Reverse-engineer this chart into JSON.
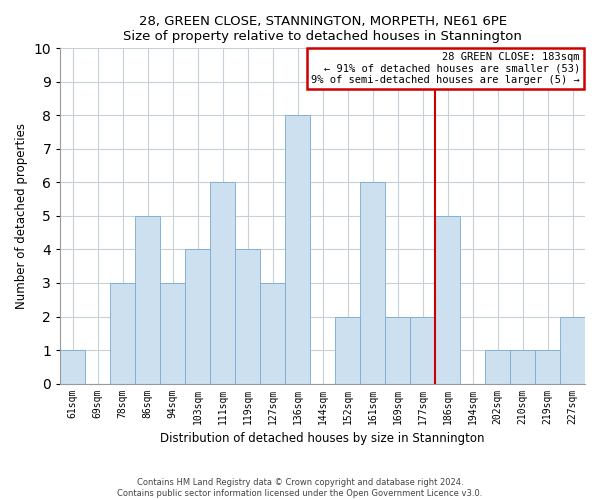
{
  "title": "28, GREEN CLOSE, STANNINGTON, MORPETH, NE61 6PE",
  "subtitle": "Size of property relative to detached houses in Stannington",
  "xlabel": "Distribution of detached houses by size in Stannington",
  "ylabel": "Number of detached properties",
  "bar_labels": [
    "61sqm",
    "69sqm",
    "78sqm",
    "86sqm",
    "94sqm",
    "103sqm",
    "111sqm",
    "119sqm",
    "127sqm",
    "136sqm",
    "144sqm",
    "152sqm",
    "161sqm",
    "169sqm",
    "177sqm",
    "186sqm",
    "194sqm",
    "202sqm",
    "210sqm",
    "219sqm",
    "227sqm"
  ],
  "bar_values": [
    1,
    0,
    3,
    5,
    3,
    4,
    6,
    4,
    3,
    8,
    0,
    2,
    6,
    2,
    2,
    5,
    0,
    1,
    1,
    1,
    2
  ],
  "bar_color": "#cde0f0",
  "bar_edge_color": "#7aaad0",
  "vline_color": "#cc0000",
  "vline_position": 15,
  "ylim": [
    0,
    10
  ],
  "yticks": [
    0,
    1,
    2,
    3,
    4,
    5,
    6,
    7,
    8,
    9,
    10
  ],
  "annotation_title": "28 GREEN CLOSE: 183sqm",
  "annotation_line1": "← 91% of detached houses are smaller (53)",
  "annotation_line2": "9% of semi-detached houses are larger (5) →",
  "annotation_box_color": "#cc0000",
  "grid_color": "#c8d0d8",
  "footnote1": "Contains HM Land Registry data © Crown copyright and database right 2024.",
  "footnote2": "Contains public sector information licensed under the Open Government Licence v3.0."
}
